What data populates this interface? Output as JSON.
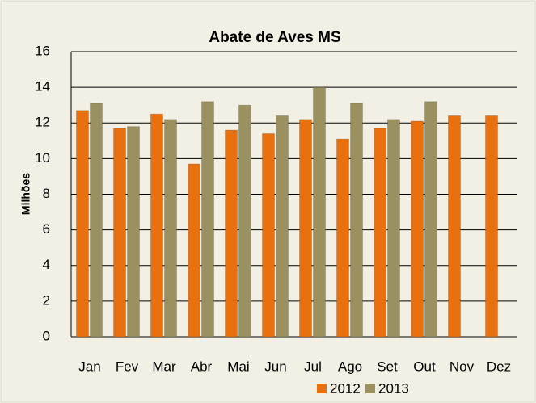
{
  "chart_data": {
    "type": "bar",
    "title": "Abate de Aves MS",
    "y_label": "Milhões",
    "categories": [
      "Jan",
      "Fev",
      "Mar",
      "Abr",
      "Mai",
      "Jun",
      "Jul",
      "Ago",
      "Set",
      "Out",
      "Nov",
      "Dez"
    ],
    "series": [
      {
        "name": "2012",
        "color": "#e8700f",
        "values": [
          12.7,
          11.7,
          12.5,
          9.7,
          11.6,
          11.4,
          12.2,
          11.1,
          11.7,
          12.1,
          12.4,
          12.4
        ]
      },
      {
        "name": "2013",
        "color": "#9a9060",
        "values": [
          13.1,
          11.8,
          12.2,
          13.2,
          13.0,
          12.4,
          14.0,
          13.1,
          12.2,
          13.2,
          null,
          null
        ]
      }
    ],
    "ylim": [
      0,
      16
    ],
    "yticks": [
      0,
      2,
      4,
      6,
      8,
      10,
      12,
      14,
      16
    ],
    "grid": true,
    "legend": "bottom"
  }
}
